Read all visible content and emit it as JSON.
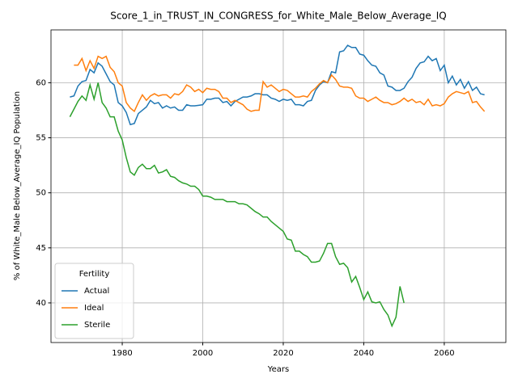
{
  "chart_data": {
    "type": "line",
    "title": "Score_1_in_TRUST_IN_CONGRESS_for_White_Male_Below_Average_IQ",
    "xlabel": "Years",
    "ylabel": "% of White_Male Below_Average_IQ Population",
    "legend_title": "Fertility",
    "legend": "lower left",
    "grid": true,
    "xlim": [
      1962.3,
      2075.3
    ],
    "ylim": [
      36.4,
      64.8
    ],
    "xticks": [
      1980,
      2000,
      2020,
      2040,
      2060
    ],
    "yticks": [
      40,
      45,
      50,
      55,
      60
    ],
    "x": [
      1967,
      1968,
      1969,
      1970,
      1971,
      1972,
      1973,
      1974,
      1975,
      1976,
      1977,
      1978,
      1979,
      1980,
      1981,
      1982,
      1983,
      1984,
      1985,
      1986,
      1987,
      1988,
      1989,
      1990,
      1991,
      1992,
      1993,
      1994,
      1995,
      1996,
      1997,
      1998,
      1999,
      2000,
      2001,
      2002,
      2003,
      2004,
      2005,
      2006,
      2007,
      2008,
      2009,
      2010,
      2011,
      2012,
      2013,
      2014,
      2015,
      2016,
      2017,
      2018,
      2019,
      2020,
      2021,
      2022,
      2023,
      2024,
      2025,
      2026,
      2027,
      2028,
      2029,
      2030,
      2031,
      2032,
      2033,
      2034,
      2035,
      2036,
      2037,
      2038,
      2039,
      2040,
      2041,
      2042,
      2043,
      2044,
      2045,
      2046,
      2047,
      2048,
      2049,
      2050,
      2051,
      2052,
      2053,
      2054,
      2055,
      2056,
      2057,
      2058,
      2059,
      2060,
      2061,
      2062,
      2063,
      2064,
      2065,
      2066,
      2067,
      2068,
      2069,
      2070
    ],
    "series": [
      {
        "name": "Actual",
        "color": "#1f77b4",
        "values": [
          58.7,
          58.8,
          59.7,
          60.1,
          60.2,
          61.2,
          60.9,
          61.8,
          61.5,
          60.8,
          60.1,
          59.8,
          58.2,
          57.9,
          57.3,
          56.2,
          56.3,
          57.2,
          57.5,
          57.8,
          58.4,
          58.1,
          58.2,
          57.7,
          57.9,
          57.7,
          57.8,
          57.5,
          57.5,
          58.0,
          57.9,
          57.9,
          57.95,
          58.0,
          58.5,
          58.5,
          58.6,
          58.6,
          58.2,
          58.3,
          57.9,
          58.3,
          58.5,
          58.7,
          58.7,
          58.8,
          59.0,
          59.0,
          58.9,
          58.9,
          58.6,
          58.5,
          58.3,
          58.5,
          58.4,
          58.5,
          58.0,
          58.0,
          57.9,
          58.3,
          58.4,
          59.3,
          59.8,
          60.1,
          60.0,
          61.0,
          60.9,
          62.8,
          62.9,
          63.4,
          63.2,
          63.2,
          62.6,
          62.5,
          62.0,
          61.6,
          61.5,
          60.9,
          60.7,
          59.7,
          59.6,
          59.3,
          59.3,
          59.5,
          60.1,
          60.5,
          61.3,
          61.8,
          61.9,
          62.4,
          62.0,
          62.2,
          61.1,
          61.6,
          60.0,
          60.6,
          59.8,
          60.3,
          59.5,
          60.1,
          59.3,
          59.6,
          59.0,
          58.9
        ]
      },
      {
        "name": "Ideal",
        "color": "#ff7f0e",
        "values": [
          null,
          61.6,
          61.6,
          62.2,
          61.1,
          62.0,
          61.3,
          62.4,
          62.2,
          62.4,
          61.4,
          61.0,
          60.0,
          59.7,
          58.2,
          57.7,
          57.4,
          58.2,
          58.9,
          58.4,
          58.8,
          59.0,
          58.8,
          58.9,
          58.9,
          58.6,
          59.0,
          58.9,
          59.2,
          59.8,
          59.6,
          59.2,
          59.4,
          59.1,
          59.5,
          59.4,
          59.4,
          59.2,
          58.6,
          58.6,
          58.2,
          58.4,
          58.2,
          58.0,
          57.6,
          57.4,
          57.5,
          57.5,
          60.1,
          59.6,
          59.8,
          59.5,
          59.2,
          59.4,
          59.3,
          59.0,
          58.7,
          58.7,
          58.8,
          58.7,
          59.2,
          59.5,
          59.9,
          60.2,
          60.0,
          60.7,
          60.3,
          59.7,
          59.6,
          59.6,
          59.5,
          58.8,
          58.6,
          58.6,
          58.3,
          58.5,
          58.7,
          58.4,
          58.2,
          58.2,
          58.0,
          58.1,
          58.3,
          58.6,
          58.3,
          58.5,
          58.2,
          58.3,
          58.0,
          58.5,
          57.9,
          58.0,
          57.9,
          58.1,
          58.7,
          59.0,
          59.2,
          59.1,
          59.0,
          59.2,
          58.2,
          58.3,
          57.8,
          57.4
        ]
      },
      {
        "name": "Sterile",
        "color": "#2ca02c",
        "values": [
          56.9,
          57.6,
          58.3,
          58.8,
          58.4,
          59.8,
          58.5,
          60.0,
          58.2,
          57.7,
          56.9,
          56.9,
          55.6,
          54.8,
          53.2,
          51.9,
          51.6,
          52.3,
          52.6,
          52.2,
          52.2,
          52.5,
          51.8,
          51.9,
          52.1,
          51.5,
          51.4,
          51.1,
          50.9,
          50.8,
          50.6,
          50.6,
          50.3,
          49.7,
          49.7,
          49.6,
          49.4,
          49.4,
          49.4,
          49.2,
          49.2,
          49.2,
          49.0,
          49.0,
          48.9,
          48.6,
          48.3,
          48.1,
          47.8,
          47.8,
          47.4,
          47.1,
          46.8,
          46.5,
          45.8,
          45.7,
          44.7,
          44.7,
          44.4,
          44.2,
          43.7,
          43.7,
          43.8,
          44.5,
          45.4,
          45.4,
          44.2,
          43.5,
          43.6,
          43.2,
          41.9,
          42.4,
          41.4,
          40.3,
          41.0,
          40.1,
          40.0,
          40.1,
          39.4,
          38.9,
          37.9,
          38.7,
          41.5,
          40.0,
          null,
          null,
          null,
          null,
          null,
          null,
          null,
          null,
          null,
          null,
          null,
          null,
          null,
          null,
          null,
          null,
          null,
          null,
          null,
          null
        ]
      }
    ]
  }
}
